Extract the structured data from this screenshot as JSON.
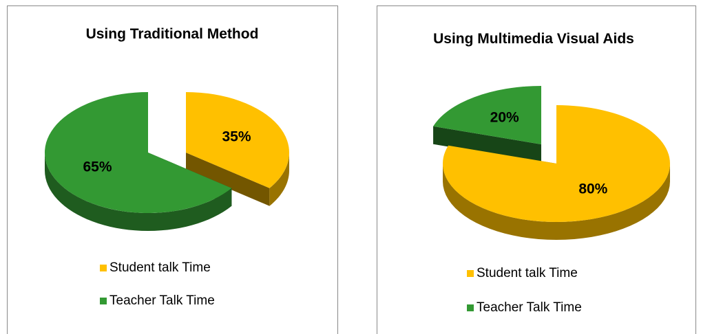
{
  "chart_data": [
    {
      "type": "pie",
      "title": "Using Traditional Method",
      "categories": [
        "Student talk Time",
        "Teacher Talk Time"
      ],
      "values": [
        35,
        65
      ],
      "value_labels": [
        "35%",
        "65%"
      ],
      "colors": [
        "#ffc000",
        "#339933"
      ]
    },
    {
      "type": "pie",
      "title": "Using Multimedia Visual Aids",
      "categories": [
        "Student talk Time",
        "Teacher Talk Time"
      ],
      "values": [
        80,
        20
      ],
      "value_labels": [
        "80%",
        "20%"
      ],
      "colors": [
        "#ffc000",
        "#339933"
      ]
    }
  ]
}
